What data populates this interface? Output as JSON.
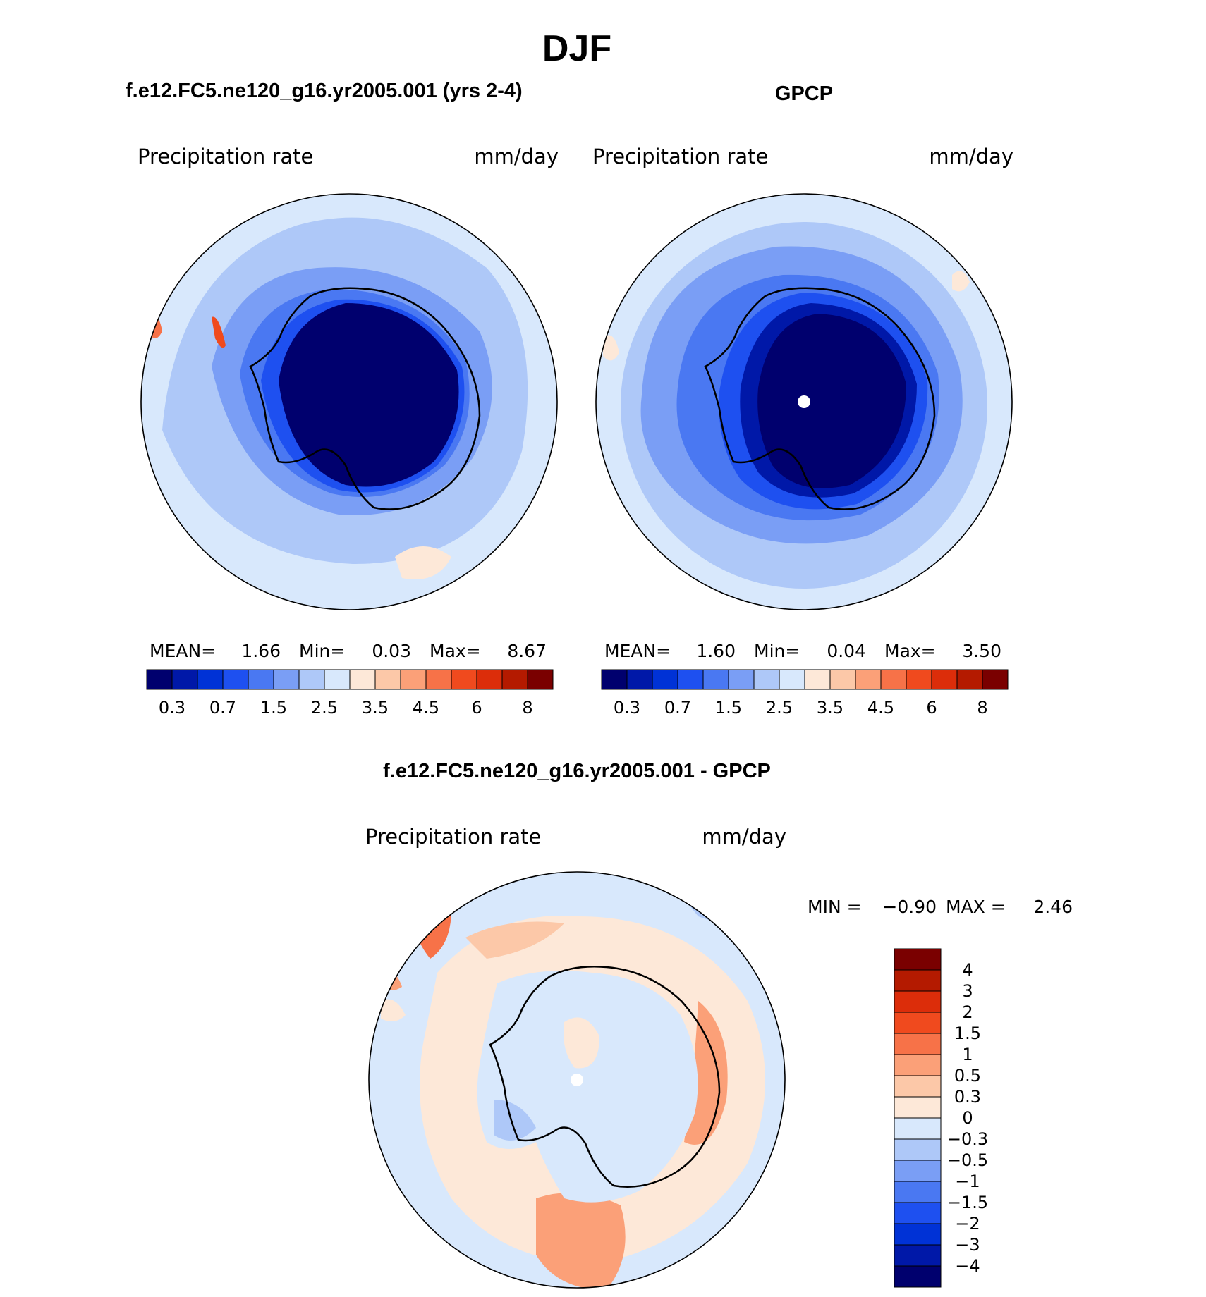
{
  "figure": {
    "title": "DJF"
  },
  "palette": {
    "seq": [
      "#00006e",
      "#0018a8",
      "#0032d6",
      "#1e50f0",
      "#4a78f2",
      "#7a9ef5",
      "#aec8f8",
      "#d8e8fc",
      "#fde8d8",
      "#fcc8a8",
      "#fba078",
      "#f77248",
      "#f04a1e",
      "#dc2d0a",
      "#b41a00",
      "#7a0000"
    ],
    "diff": [
      "#7a0000",
      "#b41a00",
      "#dc2d0a",
      "#f04a1e",
      "#f77248",
      "#fba078",
      "#fcc8a8",
      "#fde8d8",
      "#d8e8fc",
      "#aec8f8",
      "#7a9ef5",
      "#4a78f2",
      "#1e50f0",
      "#0032d6",
      "#0018a8",
      "#00006e"
    ]
  },
  "chart_data": [
    {
      "type": "heatmap",
      "projection": "south-polar-stereographic",
      "title": "f.e12.FC5.ne120_g16.yr2005.001 (yrs 2-4)",
      "variable": "Precipitation  rate",
      "units": "mm/day",
      "stats": {
        "mean_label": "MEAN=",
        "mean": "1.66",
        "min_label": "Min=",
        "min": "0.03",
        "max_label": "Max=",
        "max": "8.67"
      },
      "levels": [
        "0.3",
        "0.7",
        "1.5",
        "2.5",
        "3.5",
        "4.5",
        "6",
        "8"
      ],
      "colorbar": "horizontal"
    },
    {
      "type": "heatmap",
      "projection": "south-polar-stereographic",
      "title": "GPCP",
      "variable": "Precipitation  rate",
      "units": "mm/day",
      "stats": {
        "mean_label": "MEAN=",
        "mean": "1.60",
        "min_label": "Min=",
        "min": "0.04",
        "max_label": "Max=",
        "max": "3.50"
      },
      "levels": [
        "0.3",
        "0.7",
        "1.5",
        "2.5",
        "3.5",
        "4.5",
        "6",
        "8"
      ],
      "colorbar": "horizontal"
    },
    {
      "type": "heatmap",
      "projection": "south-polar-stereographic",
      "title": "f.e12.FC5.ne120_g16.yr2005.001 - GPCP",
      "variable": "Precipitation  rate",
      "units": "mm/day",
      "stats": {
        "min_label": "MIN =",
        "min": "−0.90",
        "max_label": "MAX =",
        "max": "2.46"
      },
      "levels": [
        "4",
        "3",
        "2",
        "1.5",
        "1",
        "0.5",
        "0.3",
        "0",
        "−0.3",
        "−0.5",
        "−1",
        "−1.5",
        "−2",
        "−3",
        "−4"
      ],
      "colorbar": "vertical"
    }
  ]
}
